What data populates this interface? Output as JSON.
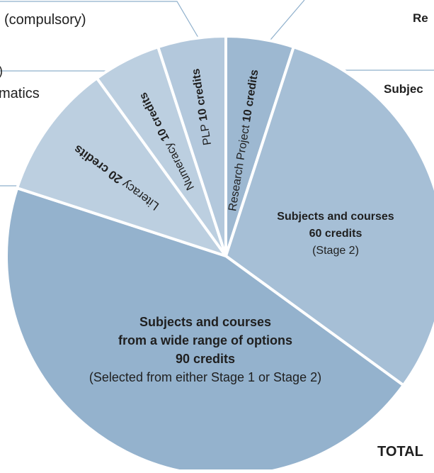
{
  "chart_data": {
    "type": "pie",
    "unit": "credits",
    "slices": [
      {
        "label": "Research Project",
        "value": 10,
        "value_text": "10 credits",
        "color": "#9db8d1"
      },
      {
        "label": "Subjects and courses",
        "value": 60,
        "value_text": "60 credits",
        "note": "(Stage 2)",
        "color": "#a6bfd6"
      },
      {
        "label": "Subjects and courses from a wide range of options",
        "label_lines": [
          "Subjects and courses",
          "from a wide range of options"
        ],
        "value": 90,
        "value_text": "90 credits",
        "note": "(Selected from either Stage 1 or Stage 2)",
        "color": "#94b2cd"
      },
      {
        "label": "Literacy",
        "value": 20,
        "value_text": "20 credits",
        "color": "#bccfe0"
      },
      {
        "label": "Numeracy",
        "value": 10,
        "value_text": "10 credits",
        "color": "#bccfe0"
      },
      {
        "label": "PLP",
        "value": 10,
        "value_text": "10 credits",
        "color": "#b3c8dc"
      }
    ],
    "start_angle_deg": 0,
    "direction": "clockwise",
    "stroke_color": "#ffffff",
    "leader_color": "#8fb0cc"
  },
  "edge_text": {
    "compulsory": "(compulsory)",
    "re": "Re",
    "subjec": "Subjec",
    "paren": ")",
    "matics": "matics",
    "total": "TOTAL"
  }
}
